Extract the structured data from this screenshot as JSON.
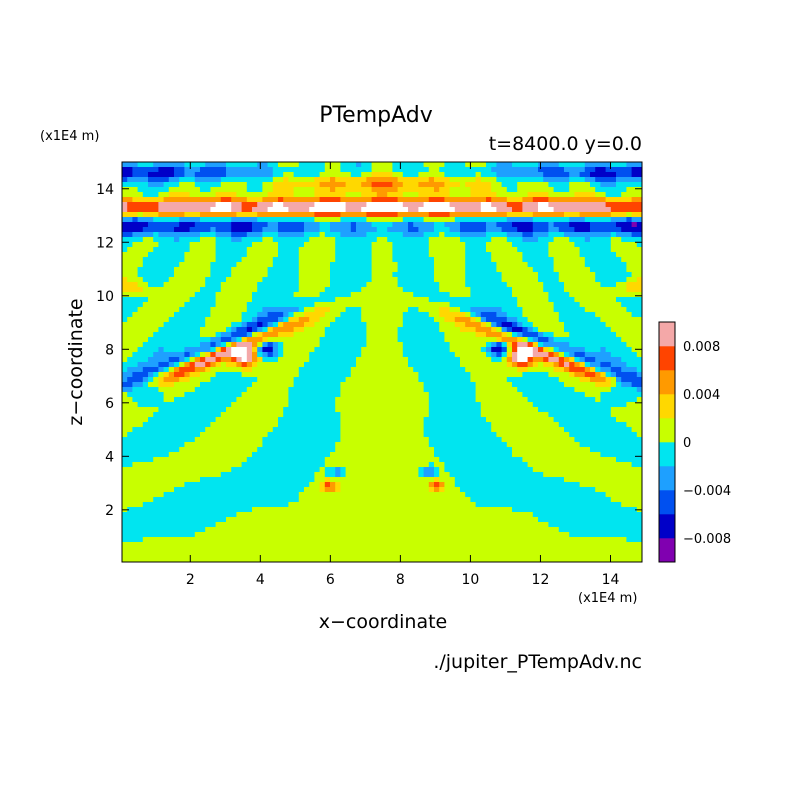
{
  "chart_data": {
    "type": "heatmap",
    "title": "PTempAdv",
    "subtitle": "t=8400.0 y=0.0",
    "xlabel": "x−coordinate",
    "ylabel": "z−coordinate",
    "x_unit": "(x1E4 m)",
    "y_unit": "(x1E4 m)",
    "xlim": [
      0.05,
      14.9
    ],
    "ylim": [
      0.05,
      15.0
    ],
    "x_ticks": [
      "2",
      "4",
      "6",
      "8",
      "10",
      "12",
      "14"
    ],
    "y_ticks": [
      "2",
      "4",
      "6",
      "8",
      "10",
      "12",
      "14"
    ],
    "footer": "./jupiter_PTempAdv.nc",
    "colorbar": {
      "levels": [
        -0.01,
        -0.008,
        -0.006,
        -0.004,
        -0.002,
        0,
        0.002,
        0.004,
        0.006,
        0.008,
        0.01
      ],
      "colors": [
        "#8000b0",
        "#0000c8",
        "#0050f0",
        "#1ea0ff",
        "#00e5f0",
        "#c8ff00",
        "#ffd800",
        "#ff9a00",
        "#ff4400",
        "#f4a8a8"
      ],
      "tick_labels": [
        "0.008",
        "0.004",
        "0",
        "−0.004",
        "−0.008"
      ],
      "tick_values": [
        0.008,
        0.004,
        0,
        -0.004,
        -0.008
      ]
    },
    "field_description": "mirror-symmetric about x=7.5; near-zero over most of domain with strong dipoles near z=13 and z=8"
  }
}
